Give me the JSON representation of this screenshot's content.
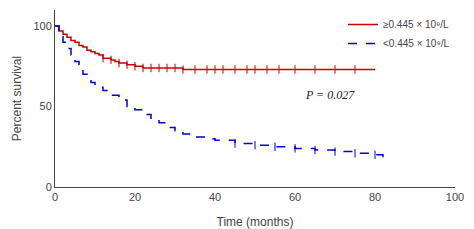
{
  "chart_data": {
    "type": "step",
    "title": "",
    "xlabel": "Time (months)",
    "ylabel": "Percent survival",
    "xlim": [
      0,
      100
    ],
    "ylim": [
      0,
      110
    ],
    "xticks": [
      0,
      20,
      40,
      60,
      80,
      100
    ],
    "yticks": [
      0,
      50,
      100
    ],
    "grid": false,
    "legend": "upper right",
    "annotations": [
      {
        "text": "P = 0.027",
        "x": 62,
        "y": 57
      }
    ],
    "series": [
      {
        "name": "≥0.445 × 10⁹/L",
        "color": "#CC0000",
        "line_style": "solid",
        "x": [
          0,
          1,
          2,
          3,
          4,
          5,
          6,
          7,
          8,
          9,
          10,
          11,
          12,
          14,
          15,
          16,
          18,
          20,
          22,
          24,
          26,
          28,
          30,
          32,
          35,
          38,
          40,
          45,
          50,
          55,
          60,
          65,
          70,
          75,
          80
        ],
        "values": [
          100,
          97,
          95,
          93,
          91,
          90,
          88,
          87,
          85,
          84,
          83,
          82,
          80,
          79,
          78,
          77,
          76,
          75,
          74,
          74,
          74,
          74,
          74,
          73,
          73,
          73,
          73,
          73,
          73,
          73,
          73,
          73,
          73,
          73,
          73
        ],
        "censor_x": [
          12,
          14,
          16,
          18,
          20,
          22,
          24,
          26,
          28,
          30,
          32,
          35,
          38,
          40,
          42,
          45,
          48,
          50,
          53,
          56,
          60,
          65,
          70,
          75
        ],
        "censor_y": [
          80,
          79,
          77,
          76,
          75,
          74,
          74,
          74,
          74,
          74,
          73,
          73,
          73,
          73,
          73,
          73,
          73,
          73,
          73,
          73,
          73,
          73,
          73,
          73
        ]
      },
      {
        "name": "<0.445 × 10⁹/L",
        "color": "#0000CC",
        "line_style": "dashed",
        "x": [
          0,
          1,
          2,
          3,
          4,
          5,
          6,
          7,
          8,
          9,
          10,
          12,
          14,
          16,
          18,
          20,
          22,
          24,
          26,
          28,
          30,
          32,
          35,
          38,
          40,
          45,
          50,
          55,
          60,
          65,
          70,
          75,
          80,
          82,
          84
        ],
        "values": [
          100,
          95,
          90,
          86,
          82,
          78,
          74,
          70,
          68,
          65,
          62,
          60,
          57,
          54,
          50,
          48,
          45,
          42,
          40,
          37,
          35,
          33,
          31,
          30,
          29,
          27,
          26,
          25,
          24,
          23,
          22,
          21,
          20,
          19,
          19
        ],
        "censor_x": [
          45,
          50,
          55,
          60,
          65,
          70,
          75,
          80
        ],
        "censor_y": [
          27,
          26,
          25,
          24,
          23,
          22,
          21,
          20
        ]
      }
    ]
  }
}
